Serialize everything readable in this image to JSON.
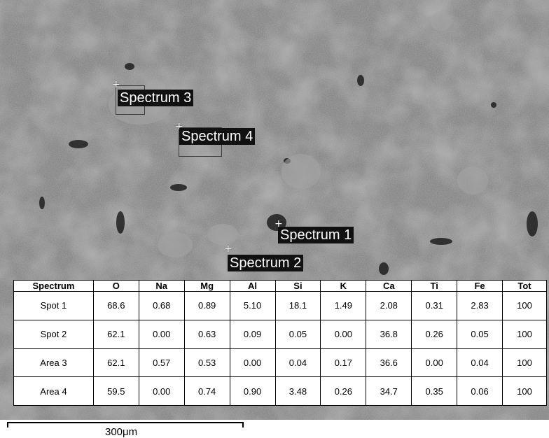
{
  "micrograph": {
    "labels": {
      "spectrum3": "Spectrum 3",
      "spectrum4": "Spectrum 4",
      "spectrum1": "Spectrum 1",
      "spectrum2": "Spectrum 2"
    },
    "marker_glyph": "+",
    "colors": {
      "background": "#858585",
      "label_bg": "#111111",
      "label_text": "#ffffff"
    }
  },
  "table": {
    "headers": [
      "Spectrum",
      "O",
      "Na",
      "Mg",
      "Al",
      "Si",
      "K",
      "Ca",
      "Ti",
      "Fe",
      "Tot"
    ],
    "rows": [
      [
        "Spot 1",
        "68.6",
        "0.68",
        "0.89",
        "5.10",
        "18.1",
        "1.49",
        "2.08",
        "0.31",
        "2.83",
        "100"
      ],
      [
        "Spot 2",
        "62.1",
        "0.00",
        "0.63",
        "0.09",
        "0.05",
        "0.00",
        "36.8",
        "0.26",
        "0.05",
        "100"
      ],
      [
        "Area 3",
        "62.1",
        "0.57",
        "0.53",
        "0.00",
        "0.04",
        "0.17",
        "36.6",
        "0.00",
        "0.04",
        "100"
      ],
      [
        "Area 4",
        "59.5",
        "0.00",
        "0.74",
        "0.90",
        "3.48",
        "0.26",
        "34.7",
        "0.35",
        "0.06",
        "100"
      ]
    ]
  },
  "scale_bar": {
    "label": "300μm"
  }
}
